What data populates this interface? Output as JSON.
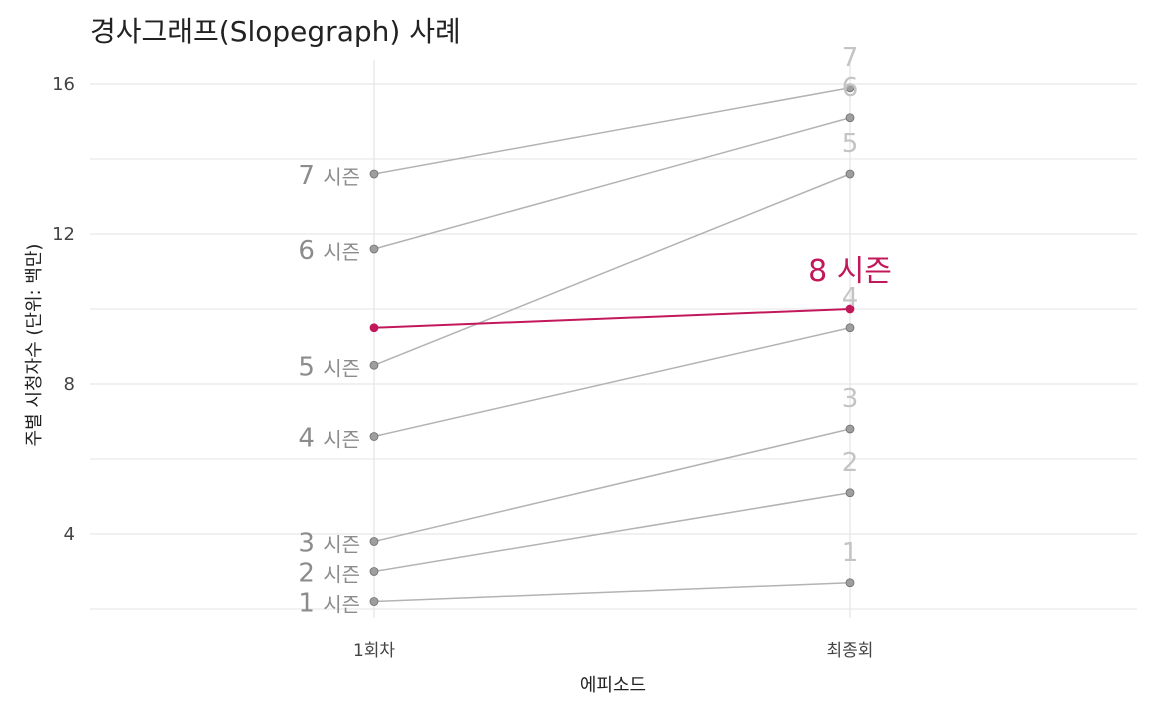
{
  "chart_data": {
    "type": "line",
    "title": "경사그래프(Slopegraph) 사례",
    "xlabel": "에피소드",
    "ylabel": "주별 시청자수 (단위: 백만)",
    "categories": [
      "1회차",
      "최종회"
    ],
    "yticks": [
      4,
      8,
      12,
      16
    ],
    "ylim": [
      1.4,
      16.6
    ],
    "grid": true,
    "season_word": "시즌",
    "series": [
      {
        "name": "1",
        "values": [
          2.2,
          2.7
        ],
        "highlight": false
      },
      {
        "name": "2",
        "values": [
          3.0,
          5.1
        ],
        "highlight": false
      },
      {
        "name": "3",
        "values": [
          3.8,
          6.8
        ],
        "highlight": false
      },
      {
        "name": "4",
        "values": [
          6.6,
          9.5
        ],
        "highlight": false
      },
      {
        "name": "5",
        "values": [
          8.5,
          13.6
        ],
        "highlight": false
      },
      {
        "name": "6",
        "values": [
          11.6,
          15.1
        ],
        "highlight": false
      },
      {
        "name": "7",
        "values": [
          13.6,
          15.9
        ],
        "highlight": false
      },
      {
        "name": "8",
        "values": [
          9.5,
          10.0
        ],
        "highlight": true
      }
    ],
    "colors": {
      "line": "#b3b3b3",
      "point": "#9e9e9e",
      "highlight": "#c2185b",
      "grid": "#e6e6e6"
    }
  }
}
